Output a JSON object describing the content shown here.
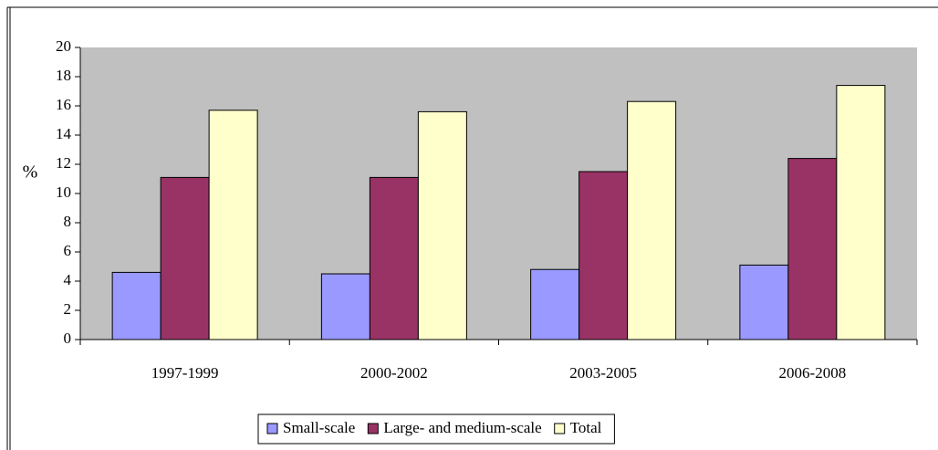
{
  "chart_data": {
    "type": "bar",
    "y_label": "%",
    "categories": [
      "1997-1999",
      "2000-2002",
      "2003-2005",
      "2006-2008"
    ],
    "series": [
      {
        "name": "Small-scale",
        "color": "#9999ff",
        "values": [
          4.6,
          4.5,
          4.8,
          5.1
        ]
      },
      {
        "name": "Large- and medium-scale",
        "color": "#993366",
        "values": [
          11.1,
          11.1,
          11.5,
          12.4
        ]
      },
      {
        "name": "Total",
        "color": "#ffffcc",
        "values": [
          15.7,
          15.6,
          16.3,
          17.4
        ]
      }
    ],
    "ylim": [
      0,
      20
    ],
    "yticks": [
      0,
      2,
      4,
      6,
      8,
      10,
      12,
      14,
      16,
      18,
      20
    ],
    "plot_background": "#c0c0c0",
    "grid": false,
    "legend": "bottom"
  }
}
